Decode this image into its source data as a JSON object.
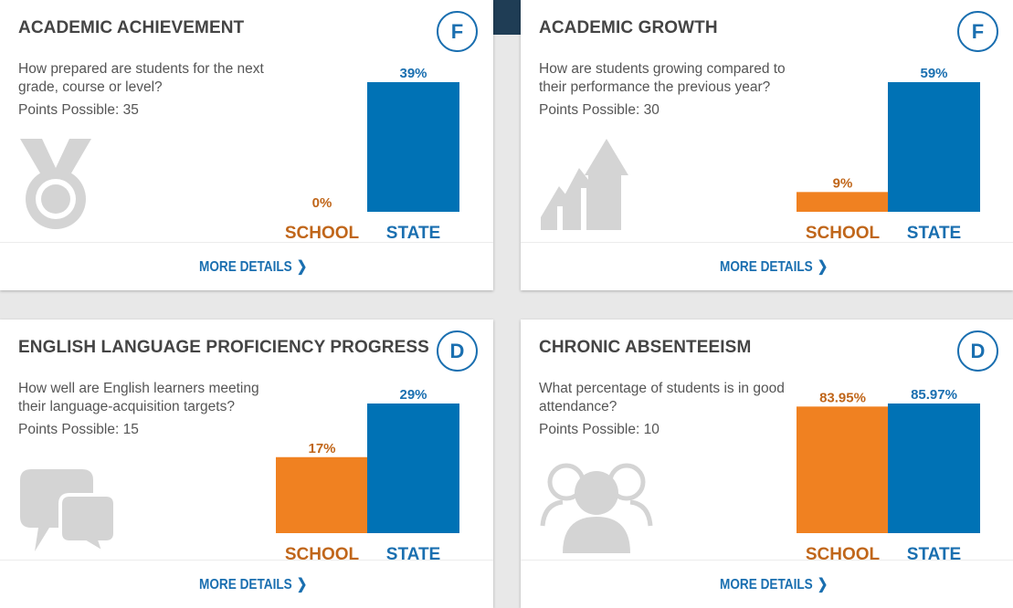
{
  "colors": {
    "school": "#f08121",
    "state": "#0072b5",
    "school_text": "#c0661a",
    "state_text": "#1a6fb0",
    "icon": "#d4d4d4"
  },
  "cards": [
    {
      "title": "ACADEMIC ACHIEVEMENT",
      "grade": "F",
      "question": "How prepared are students for the next grade, course or level?",
      "points": "Points Possible: 35",
      "icon": "medal-icon",
      "more": "MORE DETAILS",
      "chart_data": {
        "type": "bar",
        "categories": [
          "SCHOOL",
          "STATE"
        ],
        "values": [
          0,
          39
        ],
        "labels": [
          "0%",
          "39%"
        ]
      }
    },
    {
      "title": "ACADEMIC GROWTH",
      "grade": "F",
      "question": "How are students growing compared to their performance the previous year?",
      "points": "Points Possible: 30",
      "icon": "growth-arrows-icon",
      "more": "MORE DETAILS",
      "chart_data": {
        "type": "bar",
        "categories": [
          "SCHOOL",
          "STATE"
        ],
        "values": [
          9,
          59
        ],
        "labels": [
          "9%",
          "59%"
        ]
      }
    },
    {
      "title": "ENGLISH LANGUAGE PROFICIENCY PROGRESS",
      "grade": "D",
      "question": "How well are English learners meeting their language-acquisition targets?",
      "points": "Points Possible: 15",
      "icon": "speech-bubbles-icon",
      "more": "MORE DETAILS",
      "chart_data": {
        "type": "bar",
        "categories": [
          "SCHOOL",
          "STATE"
        ],
        "values": [
          17,
          29
        ],
        "labels": [
          "17%",
          "29%"
        ]
      }
    },
    {
      "title": "CHRONIC ABSENTEEISM",
      "grade": "D",
      "question": "What percentage of students is in good attendance?",
      "points": "Points Possible: 10",
      "icon": "people-icon",
      "more": "MORE DETAILS",
      "chart_data": {
        "type": "bar",
        "categories": [
          "SCHOOL",
          "STATE"
        ],
        "values": [
          83.95,
          85.97
        ],
        "labels": [
          "83.95%",
          "85.97%"
        ]
      }
    }
  ]
}
